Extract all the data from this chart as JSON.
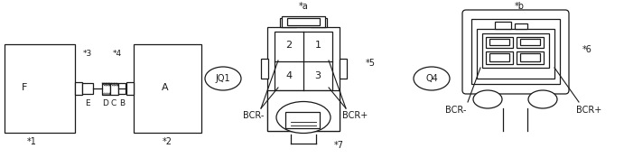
{
  "bg_color": "#ffffff",
  "line_color": "#1a1a1a",
  "fig_width": 6.91,
  "fig_height": 1.75,
  "labels": {
    "star1": "*1",
    "star2": "*2",
    "star3": "*3",
    "star4": "*4",
    "star5": "*5",
    "star6": "*6",
    "star7": "*7",
    "star_a": "*a",
    "star_b": "*b",
    "F": "F",
    "A": "A",
    "E": "E",
    "B": "B",
    "C": "C",
    "D": "D",
    "JQ1": "JQ1",
    "Q4": "Q4",
    "BCR_minus_left": "BCR-",
    "BCR_plus_left": "BCR+",
    "BCR_minus_right": "BCR-",
    "BCR_plus_right": "BCR+",
    "num1": "1",
    "num2": "2",
    "num3": "3",
    "num4": "4"
  }
}
